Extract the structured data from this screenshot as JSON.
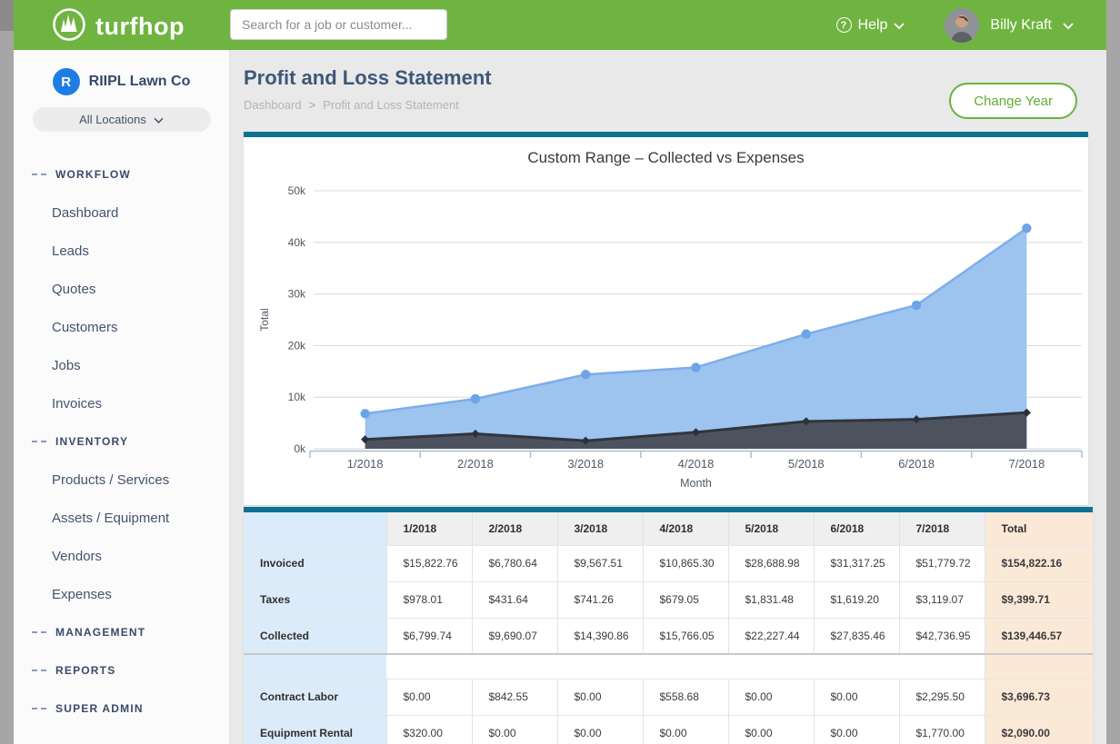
{
  "brand": {
    "name": "turfhop"
  },
  "header": {
    "search_placeholder": "Search for a job or customer...",
    "help_label": "Help",
    "help_icon_glyph": "?",
    "user_name": "Billy Kraft"
  },
  "sidebar": {
    "company_name": "RIIPL Lawn Co",
    "company_badge_letter": "R",
    "location_filter": "All Locations",
    "sections": [
      {
        "label": "WORKFLOW",
        "items": [
          "Dashboard",
          "Leads",
          "Quotes",
          "Customers",
          "Jobs",
          "Invoices"
        ]
      },
      {
        "label": "INVENTORY",
        "items": [
          "Products / Services",
          "Assets / Equipment",
          "Vendors",
          "Expenses"
        ]
      },
      {
        "label": "MANAGEMENT",
        "items": []
      },
      {
        "label": "REPORTS",
        "items": []
      },
      {
        "label": "SUPER ADMIN",
        "items": []
      }
    ]
  },
  "page": {
    "title": "Profit and Loss Statement",
    "breadcrumb": [
      "Dashboard",
      "Profit and Loss Statement"
    ],
    "breadcrumb_sep": ">",
    "change_year_label": "Change Year"
  },
  "chart_data": {
    "type": "area",
    "title": "Custom Range – Collected vs Expenses",
    "x": [
      "1/2018",
      "2/2018",
      "3/2018",
      "4/2018",
      "5/2018",
      "6/2018",
      "7/2018"
    ],
    "xlabel": "Month",
    "ylabel": "Total",
    "ylim": [
      0,
      50000
    ],
    "ytick_step": 10000,
    "ytick_suffix": "k",
    "grid": true,
    "legend": "none",
    "series": [
      {
        "name": "Collected",
        "values": [
          6799.74,
          9690.07,
          14390.86,
          15766.05,
          22227.44,
          27835.46,
          42736.95
        ],
        "fill": "#9dc3ef",
        "line": "#7eade9",
        "marker": "circle",
        "marker_color": "#6ca4e8"
      },
      {
        "name": "Expenses",
        "values": [
          1800,
          2900,
          1550,
          3200,
          5300,
          5700,
          7000
        ],
        "fill": "#4d535e",
        "line": "#30353e",
        "marker": "diamond",
        "marker_color": "#2c313a"
      }
    ]
  },
  "table": {
    "columns": [
      "",
      "1/2018",
      "2/2018",
      "3/2018",
      "4/2018",
      "5/2018",
      "6/2018",
      "7/2018",
      "Total"
    ],
    "groups": [
      {
        "rows": [
          {
            "label": "Invoiced",
            "values": [
              "$15,822.76",
              "$6,780.64",
              "$9,567.51",
              "$10,865.30",
              "$28,688.98",
              "$31,317.25",
              "$51,779.72",
              "$154,822.16"
            ]
          },
          {
            "label": "Taxes",
            "values": [
              "$978.01",
              "$431.64",
              "$741.26",
              "$679.05",
              "$1,831.48",
              "$1,619.20",
              "$3,119.07",
              "$9,399.71"
            ]
          },
          {
            "label": "Collected",
            "values": [
              "$6,799.74",
              "$9,690.07",
              "$14,390.86",
              "$15,766.05",
              "$22,227.44",
              "$27,835.46",
              "$42,736.95",
              "$139,446.57"
            ]
          }
        ]
      },
      {
        "rows": [
          {
            "label": "Contract Labor",
            "values": [
              "$0.00",
              "$842.55",
              "$0.00",
              "$558.68",
              "$0.00",
              "$0.00",
              "$2,295.50",
              "$3,696.73"
            ]
          },
          {
            "label": "Equipment Rental",
            "values": [
              "$320.00",
              "$0.00",
              "$0.00",
              "$0.00",
              "$0.00",
              "$0.00",
              "$1,770.00",
              "$2,090.00"
            ]
          }
        ]
      }
    ]
  },
  "colors": {
    "header_green": "#6fb440",
    "accent_teal": "#0e7192",
    "button_green": "#6ab33e",
    "company_badge_blue": "#1e7de4",
    "label_column_bg": "#dcebf9",
    "total_column_bg": "#fbe9d7",
    "collected_fill": "#9dc3ef",
    "expenses_fill": "#4d535e"
  }
}
